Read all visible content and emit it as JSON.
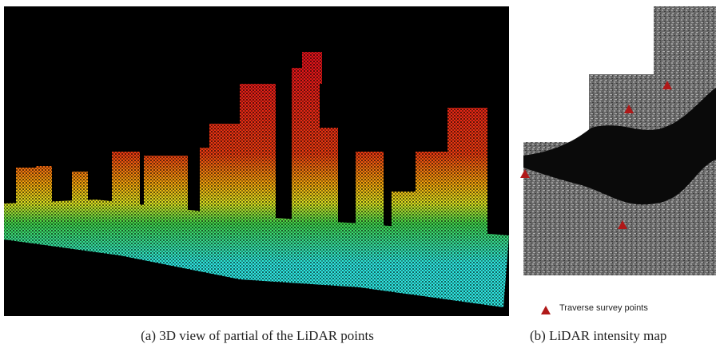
{
  "figure": {
    "panels": [
      {
        "caption": "(a) 3D view of partial of the LiDAR points"
      },
      {
        "caption": "(b) LiDAR intensity map",
        "legend": "Traverse survey points"
      }
    ]
  }
}
